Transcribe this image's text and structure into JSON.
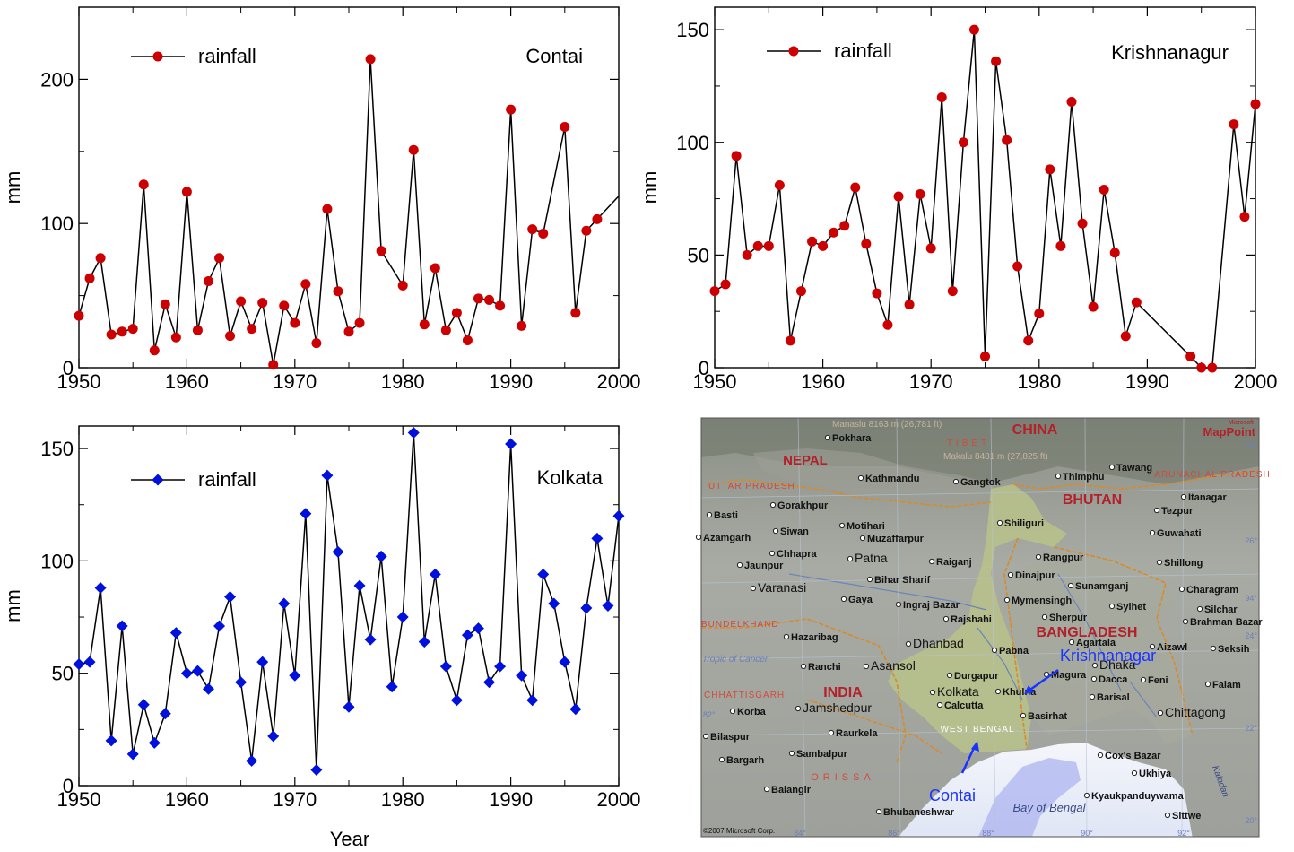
{
  "chart_data": [
    {
      "type": "line",
      "legend": "rainfall",
      "location": "Contai",
      "ylabel": "mm",
      "xlabel": "",
      "xlim": [
        1950,
        2000
      ],
      "ylim": [
        0,
        250
      ],
      "xticks": [
        "1950",
        "1960",
        "1970",
        "1980",
        "1990",
        "2000"
      ],
      "yticks": [
        "0",
        "100",
        "200"
      ],
      "ytick_values": [
        0,
        100,
        200
      ],
      "marker": "circle",
      "color": "#cc0000",
      "series": [
        {
          "x": [
            1950,
            1951,
            1952,
            1953,
            1954,
            1955,
            1956,
            1957,
            1958,
            1959,
            1960,
            1961,
            1962,
            1963,
            1964,
            1965,
            1966,
            1967,
            1968,
            1969,
            1970,
            1971,
            1972,
            1973,
            1974,
            1975,
            1976,
            1977,
            1978,
            1980,
            1981,
            1982,
            1983,
            1984,
            1985,
            1986,
            1987,
            1988,
            1989,
            1990,
            1991,
            1992,
            1993,
            1995,
            1996,
            1997,
            1998
          ],
          "y": [
            36,
            62,
            76,
            23,
            25,
            27,
            127,
            12,
            44,
            21,
            122,
            26,
            60,
            76,
            22,
            46,
            27,
            45,
            2,
            43,
            31,
            58,
            17,
            110,
            53,
            25,
            31,
            214,
            81,
            57,
            151,
            30,
            69,
            26,
            38,
            19,
            48,
            47,
            43,
            179,
            29,
            96,
            93,
            167,
            38,
            95,
            103
          ]
        }
      ],
      "line_end": [
        2000,
        119
      ]
    },
    {
      "type": "line",
      "legend": "rainfall",
      "location": "Krishnanagur",
      "ylabel": "mm",
      "xlabel": "",
      "xlim": [
        1950,
        2000
      ],
      "ylim": [
        0,
        160
      ],
      "xticks": [
        "1950",
        "1960",
        "1970",
        "1980",
        "1990",
        "2000"
      ],
      "yticks": [
        "0",
        "50",
        "100",
        "150"
      ],
      "ytick_values": [
        0,
        50,
        100,
        150
      ],
      "marker": "circle",
      "color": "#cc0000",
      "series": [
        {
          "x": [
            1950,
            1951,
            1952,
            1953,
            1954,
            1955,
            1956,
            1957,
            1958,
            1959,
            1960,
            1961,
            1962,
            1963,
            1964,
            1965,
            1966,
            1967,
            1968,
            1969,
            1970,
            1971,
            1972,
            1973,
            1974,
            1975,
            1976,
            1977,
            1978,
            1979,
            1980,
            1981,
            1982,
            1983,
            1984,
            1985,
            1986,
            1987,
            1988,
            1989,
            1994,
            1995,
            1996,
            1998,
            1999,
            2000
          ],
          "y": [
            34,
            37,
            94,
            50,
            54,
            54,
            81,
            12,
            34,
            56,
            54,
            60,
            63,
            80,
            55,
            33,
            19,
            76,
            28,
            77,
            53,
            120,
            34,
            100,
            150,
            5,
            136,
            101,
            45,
            12,
            24,
            88,
            54,
            118,
            64,
            27,
            79,
            51,
            14,
            29,
            5,
            0,
            0,
            108,
            67,
            117
          ]
        }
      ]
    },
    {
      "type": "line",
      "legend": "rainfall",
      "location": "Kolkata",
      "ylabel": "mm",
      "xlabel": "Year",
      "xlim": [
        1950,
        2000
      ],
      "ylim": [
        0,
        160
      ],
      "xticks": [
        "1950",
        "1960",
        "1970",
        "1980",
        "1990",
        "2000"
      ],
      "yticks": [
        "0",
        "50",
        "100",
        "150"
      ],
      "ytick_values": [
        0,
        50,
        100,
        150
      ],
      "marker": "diamond",
      "color": "#0010dd",
      "series": [
        {
          "x": [
            1950,
            1951,
            1952,
            1953,
            1954,
            1955,
            1956,
            1957,
            1958,
            1959,
            1960,
            1961,
            1962,
            1963,
            1964,
            1965,
            1966,
            1967,
            1968,
            1969,
            1970,
            1971,
            1972,
            1973,
            1974,
            1975,
            1976,
            1977,
            1978,
            1979,
            1980,
            1981,
            1982,
            1983,
            1984,
            1985,
            1986,
            1987,
            1988,
            1989,
            1990,
            1991,
            1992,
            1993,
            1994,
            1995,
            1996,
            1997,
            1998,
            1999,
            2000
          ],
          "y": [
            54,
            55,
            88,
            20,
            71,
            14,
            36,
            19,
            32,
            68,
            50,
            51,
            43,
            71,
            84,
            46,
            11,
            55,
            22,
            81,
            49,
            121,
            7,
            138,
            104,
            35,
            89,
            65,
            102,
            44,
            75,
            157,
            64,
            94,
            53,
            38,
            67,
            70,
            46,
            53,
            152,
            49,
            38,
            94,
            81,
            55,
            34,
            79,
            110,
            80,
            120
          ]
        }
      ]
    }
  ],
  "map": {
    "countries": [
      "CHINA",
      "NEPAL",
      "BHUTAN",
      "BANGLADESH",
      "INDIA"
    ],
    "regions": [
      "TIBET",
      "UTTAR PRADESH",
      "ARUNACHAL PRADESH",
      "BUNDELKHAND",
      "CHHATTISGARH",
      "ORISSA",
      "WEST BENGAL"
    ],
    "cities": [
      "Pokhara",
      "Kathmandu",
      "Gangtok",
      "Thimphu",
      "Tawang",
      "Itanagar",
      "Tezpur",
      "Gorakhpur",
      "Basti",
      "Siwan",
      "Motihari",
      "Muzaffarpur",
      "Shiliguri",
      "Guwahati",
      "Azamgarh",
      "Chhapra",
      "Jaunpur",
      "Patna",
      "Raiganj",
      "Rangpur",
      "Shillong",
      "Varanasi",
      "Bihar Sharif",
      "Dinajpur",
      "Sunamganj",
      "Charagram",
      "Gaya",
      "Ingraj Bazar",
      "Mymensingh",
      "Sylhet",
      "Silchar",
      "Rajshahi",
      "Sherpur",
      "Brahman Bazar",
      "Hazaribag",
      "Dhanbad",
      "Pabna",
      "Agartala",
      "Aizawl",
      "Seksih",
      "Ranchi",
      "Asansol",
      "Durgapur",
      "Magura",
      "Dhaka",
      "Dacca",
      "Feni",
      "Kolkata",
      "Calcutta",
      "Khulna",
      "Barisal",
      "Falam",
      "Jamshedpur",
      "Korba",
      "Basirhat",
      "Chittagong",
      "Bilaspur",
      "Raurkela",
      "Bargarh",
      "Sambalpur",
      "Cox's Bazar",
      "Ukhiya",
      "Balangir",
      "Kyaukpanduywama",
      "Bhubaneshwar",
      "Sittwe",
      "Krishnanagar",
      "Contai"
    ],
    "water": [
      "Bay of Bengal",
      "Kaladan"
    ],
    "peaks": [
      "Manaslu 8163 m (26,781 ft)",
      "Makalu 8481 m (27,825 ft)"
    ],
    "misc": [
      "Tropic of Cancer"
    ],
    "brand": "MapPoint",
    "brand_small": "Microsoft",
    "copyright": "©2007 Microsoft Corp.",
    "lat_labels": [
      "28°",
      "26°",
      "24°",
      "22°",
      "20°"
    ],
    "lon_labels": [
      "84°",
      "86°",
      "88°",
      "90°",
      "92°"
    ],
    "left_lat_labels": [
      "82°"
    ],
    "right_lon_labels": [
      "94°"
    ],
    "annotations": [
      {
        "label": "Krishnanagar",
        "color": "#1a33ff"
      },
      {
        "label": "Contai",
        "color": "#1a33ff"
      }
    ]
  }
}
